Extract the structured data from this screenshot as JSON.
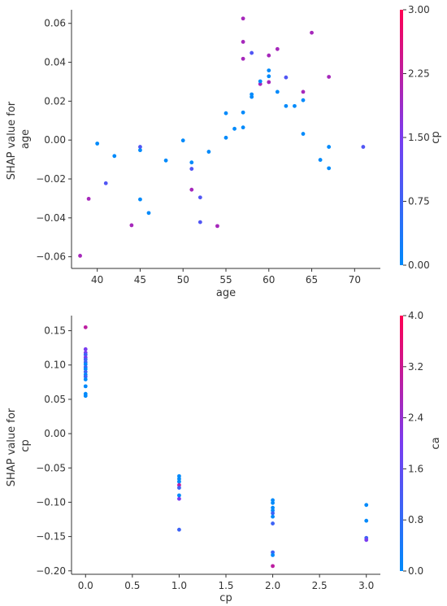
{
  "chart_data": [
    {
      "type": "scatter",
      "xlabel": "age",
      "ylabel": "SHAP value for\nage",
      "xlim": [
        37,
        73
      ],
      "ylim": [
        -0.066,
        0.067
      ],
      "xticks": [
        40,
        45,
        50,
        55,
        60,
        65,
        70
      ],
      "xtick_labels": [
        "40",
        "45",
        "50",
        "55",
        "60",
        "65",
        "70"
      ],
      "yticks": [
        -0.06,
        -0.04,
        -0.02,
        0.0,
        0.02,
        0.04,
        0.06
      ],
      "ytick_labels": [
        "−0.06",
        "−0.04",
        "−0.02",
        "0.00",
        "0.02",
        "0.04",
        "0.06"
      ],
      "colorbar": {
        "label": "cp",
        "range": [
          0,
          3
        ],
        "ticks": [
          0,
          0.75,
          1.5,
          2.25,
          3
        ],
        "tick_labels": [
          "0.00",
          "0.75",
          "1.50",
          "2.25",
          "3.00"
        ],
        "color_low": "#008afb",
        "color_mid": "#7a3cf0",
        "color_high": "#ff0052"
      },
      "points": [
        {
          "x": 38,
          "y": -0.0595,
          "c": 2
        },
        {
          "x": 39,
          "y": -0.0302,
          "c": 2
        },
        {
          "x": 40,
          "y": -0.0018,
          "c": 0
        },
        {
          "x": 41,
          "y": -0.0222,
          "c": 1
        },
        {
          "x": 42,
          "y": -0.0082,
          "c": 0
        },
        {
          "x": 44,
          "y": -0.0438,
          "c": 2
        },
        {
          "x": 45,
          "y": -0.0035,
          "c": 1
        },
        {
          "x": 45,
          "y": -0.0052,
          "c": 0
        },
        {
          "x": 45,
          "y": -0.0305,
          "c": 0
        },
        {
          "x": 46,
          "y": -0.0375,
          "c": 0
        },
        {
          "x": 48,
          "y": -0.0105,
          "c": 0
        },
        {
          "x": 50,
          "y": -0.0002,
          "c": 0
        },
        {
          "x": 51,
          "y": -0.0115,
          "c": 0
        },
        {
          "x": 51,
          "y": -0.0148,
          "c": 1
        },
        {
          "x": 51,
          "y": -0.0255,
          "c": 2
        },
        {
          "x": 52,
          "y": -0.0295,
          "c": 1
        },
        {
          "x": 52,
          "y": -0.0422,
          "c": 1
        },
        {
          "x": 53,
          "y": -0.006,
          "c": 0
        },
        {
          "x": 54,
          "y": -0.0442,
          "c": 2
        },
        {
          "x": 55,
          "y": 0.0012,
          "c": 0
        },
        {
          "x": 55,
          "y": 0.0138,
          "c": 0
        },
        {
          "x": 56,
          "y": 0.0058,
          "c": 0
        },
        {
          "x": 57,
          "y": 0.0065,
          "c": 0
        },
        {
          "x": 57,
          "y": 0.0142,
          "c": 0
        },
        {
          "x": 57,
          "y": 0.0418,
          "c": 2
        },
        {
          "x": 57,
          "y": 0.0505,
          "c": 2
        },
        {
          "x": 57,
          "y": 0.0625,
          "c": 2
        },
        {
          "x": 58,
          "y": 0.0222,
          "c": 0
        },
        {
          "x": 58,
          "y": 0.0235,
          "c": 0
        },
        {
          "x": 58,
          "y": 0.0448,
          "c": 1
        },
        {
          "x": 59,
          "y": 0.0288,
          "c": 2
        },
        {
          "x": 59,
          "y": 0.0302,
          "c": 0
        },
        {
          "x": 60,
          "y": 0.0298,
          "c": 2
        },
        {
          "x": 60,
          "y": 0.0328,
          "c": 0
        },
        {
          "x": 60,
          "y": 0.0358,
          "c": 0
        },
        {
          "x": 60,
          "y": 0.0435,
          "c": 2
        },
        {
          "x": 61,
          "y": 0.0248,
          "c": 0
        },
        {
          "x": 61,
          "y": 0.0468,
          "c": 2
        },
        {
          "x": 62,
          "y": 0.0175,
          "c": 0
        },
        {
          "x": 62,
          "y": 0.0322,
          "c": 1
        },
        {
          "x": 63,
          "y": 0.0175,
          "c": 0
        },
        {
          "x": 64,
          "y": 0.0032,
          "c": 0
        },
        {
          "x": 64,
          "y": 0.0205,
          "c": 0
        },
        {
          "x": 64,
          "y": 0.0248,
          "c": 2
        },
        {
          "x": 65,
          "y": 0.0552,
          "c": 2
        },
        {
          "x": 66,
          "y": -0.0102,
          "c": 0
        },
        {
          "x": 67,
          "y": -0.0035,
          "c": 0
        },
        {
          "x": 67,
          "y": -0.0145,
          "c": 0
        },
        {
          "x": 67,
          "y": 0.0325,
          "c": 2
        },
        {
          "x": 71,
          "y": -0.0035,
          "c": 1
        }
      ]
    },
    {
      "type": "scatter",
      "xlabel": "cp",
      "ylabel": "SHAP value for\ncp",
      "xlim": [
        -0.15,
        3.15
      ],
      "ylim": [
        -0.205,
        0.172
      ],
      "xticks": [
        0,
        0.5,
        1,
        1.5,
        2,
        2.5,
        3
      ],
      "xtick_labels": [
        "0.0",
        "0.5",
        "1.0",
        "1.5",
        "2.0",
        "2.5",
        "3.0"
      ],
      "yticks": [
        -0.2,
        -0.15,
        -0.1,
        -0.05,
        0.0,
        0.05,
        0.1,
        0.15
      ],
      "ytick_labels": [
        "−0.20",
        "−0.15",
        "−0.10",
        "−0.05",
        "0.00",
        "0.05",
        "0.10",
        "0.15"
      ],
      "colorbar": {
        "label": "ca",
        "range": [
          0,
          4
        ],
        "ticks": [
          0,
          0.8,
          1.6,
          2.4,
          3.2,
          4
        ],
        "tick_labels": [
          "0.0",
          "0.8",
          "1.6",
          "2.4",
          "3.2",
          "4.0"
        ],
        "color_low": "#008afb",
        "color_mid": "#7a3cf0",
        "color_high": "#ff0052"
      },
      "points": [
        {
          "x": 0,
          "y": 0.155,
          "c": 3
        },
        {
          "x": 0,
          "y": 0.123,
          "c": 2
        },
        {
          "x": 0,
          "y": 0.118,
          "c": 2
        },
        {
          "x": 0,
          "y": 0.115,
          "c": 1
        },
        {
          "x": 0,
          "y": 0.111,
          "c": 2
        },
        {
          "x": 0,
          "y": 0.108,
          "c": 1
        },
        {
          "x": 0,
          "y": 0.104,
          "c": 1
        },
        {
          "x": 0,
          "y": 0.101,
          "c": 0
        },
        {
          "x": 0,
          "y": 0.097,
          "c": 1
        },
        {
          "x": 0,
          "y": 0.094,
          "c": 0
        },
        {
          "x": 0,
          "y": 0.09,
          "c": 1
        },
        {
          "x": 0,
          "y": 0.086,
          "c": 0
        },
        {
          "x": 0,
          "y": 0.083,
          "c": 1
        },
        {
          "x": 0,
          "y": 0.079,
          "c": 0
        },
        {
          "x": 0,
          "y": 0.069,
          "c": 0
        },
        {
          "x": 0,
          "y": 0.058,
          "c": 0
        },
        {
          "x": 0,
          "y": 0.055,
          "c": 0
        },
        {
          "x": 1,
          "y": -0.062,
          "c": 0
        },
        {
          "x": 1,
          "y": -0.066,
          "c": 0
        },
        {
          "x": 1,
          "y": -0.07,
          "c": 0
        },
        {
          "x": 1,
          "y": -0.075,
          "c": 3
        },
        {
          "x": 1,
          "y": -0.079,
          "c": 1
        },
        {
          "x": 1,
          "y": -0.09,
          "c": 0
        },
        {
          "x": 1,
          "y": -0.095,
          "c": 2
        },
        {
          "x": 1,
          "y": -0.14,
          "c": 1
        },
        {
          "x": 2,
          "y": -0.097,
          "c": 0
        },
        {
          "x": 2,
          "y": -0.101,
          "c": 0
        },
        {
          "x": 2,
          "y": -0.108,
          "c": 0
        },
        {
          "x": 2,
          "y": -0.112,
          "c": 0
        },
        {
          "x": 2,
          "y": -0.116,
          "c": 1
        },
        {
          "x": 2,
          "y": -0.121,
          "c": 0
        },
        {
          "x": 2,
          "y": -0.131,
          "c": 1
        },
        {
          "x": 2,
          "y": -0.173,
          "c": 1
        },
        {
          "x": 2,
          "y": -0.177,
          "c": 0
        },
        {
          "x": 2,
          "y": -0.193,
          "c": 3
        },
        {
          "x": 3,
          "y": -0.104,
          "c": 0
        },
        {
          "x": 3,
          "y": -0.127,
          "c": 0
        },
        {
          "x": 3,
          "y": -0.152,
          "c": 1
        },
        {
          "x": 3,
          "y": -0.155,
          "c": 2
        }
      ]
    }
  ]
}
